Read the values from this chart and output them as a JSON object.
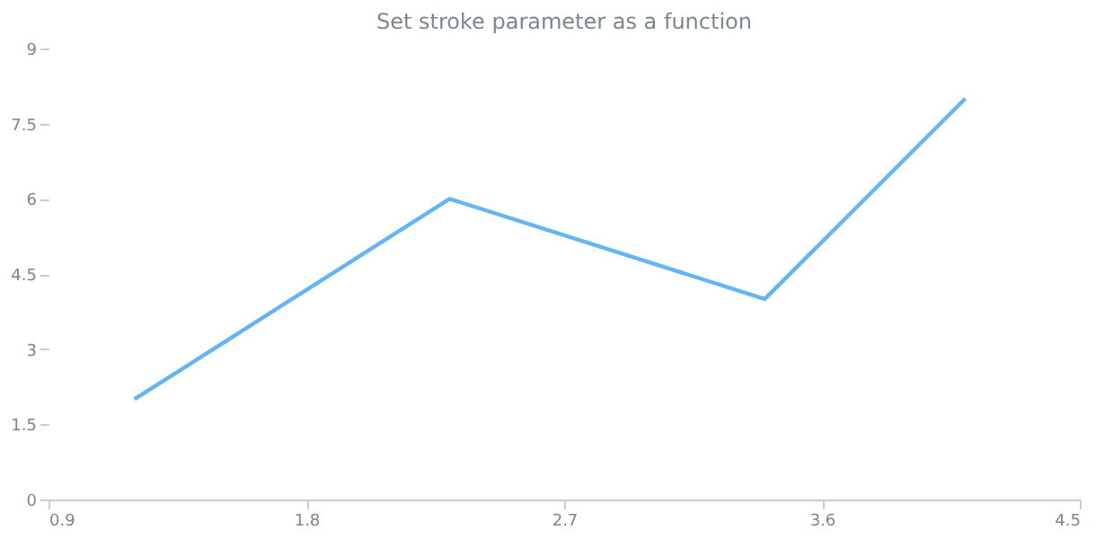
{
  "chart_data": {
    "type": "line",
    "title": "Set stroke parameter as a function",
    "x": [
      1.2,
      2.3,
      3.4,
      4.1
    ],
    "series": [
      {
        "color": "#64b5f6",
        "values": [
          2,
          6,
          4,
          8
        ]
      }
    ],
    "xlim": [
      0.9,
      4.5
    ],
    "xticks": [
      0.9,
      1.8,
      2.7,
      3.6,
      4.5
    ],
    "ylim": [
      0,
      9
    ],
    "yticks": [
      0,
      1.5,
      3,
      4.5,
      6,
      7.5,
      9
    ],
    "grid": false,
    "marker": "none",
    "line_style": "solid"
  }
}
